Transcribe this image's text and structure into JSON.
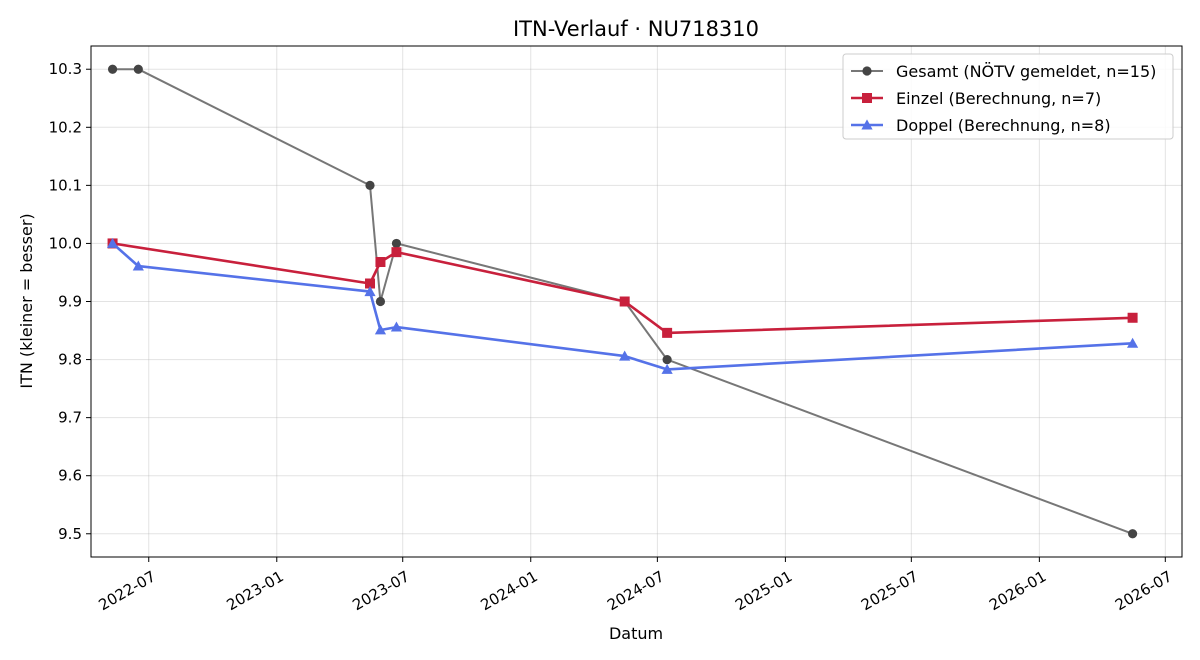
{
  "chart_data": {
    "type": "line",
    "title": "ITN-Verlauf · NU718310",
    "xlabel": "Datum",
    "ylabel": "ITN  (kleiner = besser)",
    "ylim": [
      9.46,
      10.34
    ],
    "xlim": [
      "2022-04-09",
      "2026-07-25"
    ],
    "grid": true,
    "legend_position": "top-right",
    "x_ticks": [
      "2022-07",
      "2023-01",
      "2023-07",
      "2024-01",
      "2024-07",
      "2025-01",
      "2025-07",
      "2026-01",
      "2026-07"
    ],
    "y_ticks": [
      "9.5",
      "9.6",
      "9.7",
      "9.8",
      "9.9",
      "10.0",
      "10.1",
      "10.2",
      "10.3"
    ],
    "series": [
      {
        "name": "Gesamt (NÖTV gemeldet, n=15)",
        "color": "#777777",
        "marker_color": "#444444",
        "marker": "circle",
        "points": [
          {
            "x": "2022-05-10",
            "y": 10.3
          },
          {
            "x": "2022-06-16",
            "y": 10.3
          },
          {
            "x": "2023-05-15",
            "y": 10.1
          },
          {
            "x": "2023-05-30",
            "y": 9.9
          },
          {
            "x": "2023-06-22",
            "y": 10.0
          },
          {
            "x": "2024-05-15",
            "y": 9.9
          },
          {
            "x": "2024-07-15",
            "y": 9.8
          },
          {
            "x": "2026-05-15",
            "y": 9.5
          }
        ]
      },
      {
        "name": "Einzel (Berechnung, n=7)",
        "color": "#c8203c",
        "marker_color": "#c8203c",
        "marker": "square",
        "points": [
          {
            "x": "2022-05-10",
            "y": 10.0
          },
          {
            "x": "2023-05-15",
            "y": 9.931
          },
          {
            "x": "2023-05-30",
            "y": 9.968
          },
          {
            "x": "2023-06-22",
            "y": 9.985
          },
          {
            "x": "2024-05-15",
            "y": 9.9
          },
          {
            "x": "2024-07-15",
            "y": 9.846
          },
          {
            "x": "2026-05-15",
            "y": 9.872
          }
        ]
      },
      {
        "name": "Doppel (Berechnung, n=8)",
        "color": "#5572e8",
        "marker_color": "#5572e8",
        "marker": "triangle",
        "points": [
          {
            "x": "2022-05-10",
            "y": 10.0
          },
          {
            "x": "2022-06-16",
            "y": 9.961
          },
          {
            "x": "2023-05-15",
            "y": 9.917
          },
          {
            "x": "2023-05-30",
            "y": 9.851
          },
          {
            "x": "2023-06-22",
            "y": 9.856
          },
          {
            "x": "2024-05-15",
            "y": 9.806
          },
          {
            "x": "2024-07-15",
            "y": 9.783
          },
          {
            "x": "2026-05-15",
            "y": 9.828
          }
        ]
      }
    ]
  }
}
